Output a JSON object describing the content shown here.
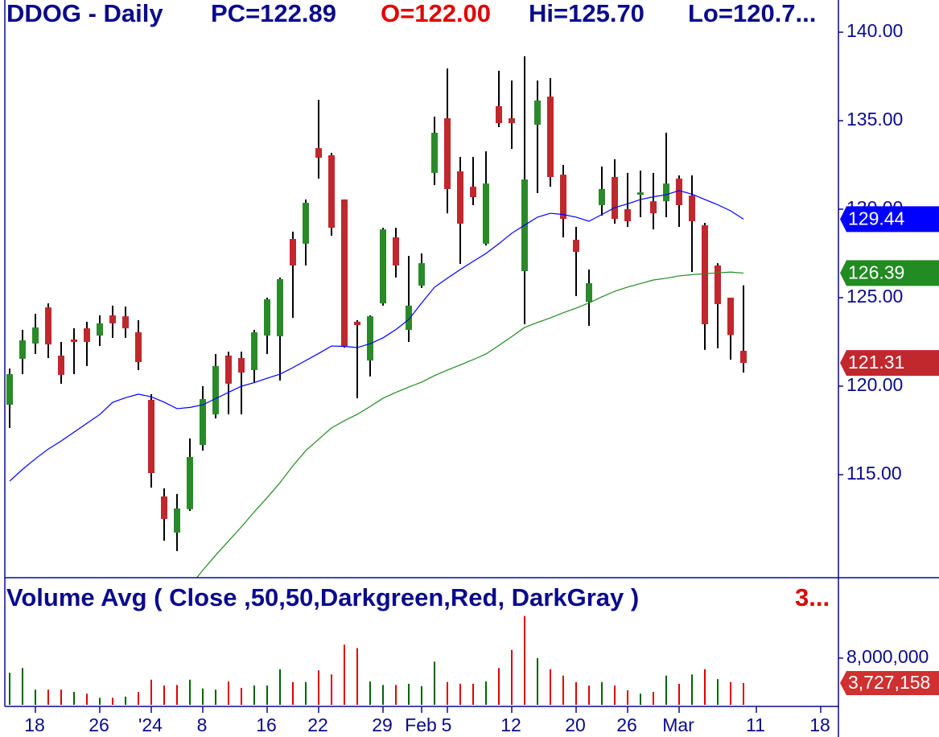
{
  "chart_data": [
    {
      "type": "candlestick",
      "title": "DDOG - Daily",
      "title_color": "#0a0a8c",
      "header": [
        {
          "text": "PC=122.89",
          "color": "#0a0a8c"
        },
        {
          "text": "O=122.00",
          "color": "#e00000"
        },
        {
          "text": "Hi=125.70",
          "color": "#0a0a8c"
        },
        {
          "text": "Lo=120.7...",
          "color": "#0a0a8c"
        }
      ],
      "categories": [
        null,
        null,
        "18",
        null,
        null,
        null,
        null,
        "26",
        null,
        null,
        null,
        "'24",
        null,
        null,
        null,
        "8",
        null,
        null,
        null,
        null,
        "16",
        null,
        null,
        null,
        "22",
        null,
        null,
        null,
        null,
        "29",
        null,
        null,
        "Feb",
        null,
        "5",
        null,
        null,
        null,
        null,
        "12",
        null,
        null,
        null,
        null,
        "20",
        null,
        null,
        null,
        "26",
        null,
        null,
        null,
        "Mar",
        null,
        null,
        null,
        null,
        null,
        "11",
        null,
        null,
        null,
        null,
        "18"
      ],
      "open": [
        118.95,
        121.55,
        122.41,
        124.45,
        121.73,
        122.64,
        123.27,
        122.86,
        124.0,
        123.95,
        123.05,
        119.23,
        113.77,
        111.73,
        113.05,
        116.68,
        118.41,
        121.73,
        121.59,
        120.91,
        122.86,
        122.82,
        128.32,
        128.05,
        133.45,
        133.05,
        130.55,
        123.64,
        121.45,
        124.68,
        128.41,
        123.18,
        125.68,
        132.05,
        135.14,
        132.14,
        131.27,
        128.05,
        135.82,
        135.14,
        126.5,
        134.77,
        136.36,
        131.95,
        128.27,
        124.77,
        130.23,
        131.82,
        130.0,
        130.82,
        130.45,
        130.45,
        131.73,
        130.77,
        129.09,
        126.82,
        125.0,
        122.0,
        null,
        null,
        null,
        null,
        null,
        null
      ],
      "high": [
        121.0,
        123.18,
        124.09,
        124.68,
        122.5,
        123.27,
        123.64,
        124.0,
        124.55,
        124.5,
        123.73,
        119.55,
        114.23,
        113.91,
        117.05,
        120.0,
        121.82,
        121.95,
        121.95,
        123.18,
        125.0,
        126.14,
        128.73,
        130.55,
        136.18,
        133.18,
        130.55,
        123.73,
        124.0,
        128.95,
        128.95,
        127.36,
        127.5,
        135.23,
        137.95,
        132.95,
        132.95,
        133.27,
        137.82,
        137.27,
        138.64,
        137.27,
        137.41,
        132.5,
        129.0,
        126.59,
        132.41,
        132.82,
        132.05,
        132.18,
        132.05,
        134.32,
        131.91,
        131.91,
        129.23,
        126.95,
        125.0,
        125.7,
        null,
        null,
        null,
        null,
        null,
        null
      ],
      "low": [
        117.64,
        120.68,
        121.82,
        121.59,
        120.14,
        120.68,
        121.14,
        122.27,
        122.73,
        122.73,
        120.91,
        114.27,
        111.27,
        110.68,
        112.95,
        116.36,
        118.18,
        118.41,
        118.41,
        120.23,
        121.82,
        120.32,
        123.86,
        126.82,
        131.73,
        128.5,
        122.18,
        119.32,
        120.55,
        124.55,
        126.14,
        122.5,
        125.55,
        131.36,
        129.77,
        126.91,
        130.23,
        127.95,
        134.64,
        133.41,
        123.5,
        130.91,
        131.27,
        128.41,
        125.09,
        123.41,
        129.64,
        129.18,
        129.0,
        129.55,
        128.86,
        129.55,
        129.0,
        126.45,
        122.05,
        122.14,
        121.5,
        120.77,
        null,
        null,
        null,
        null,
        null,
        null
      ],
      "close": [
        120.68,
        122.59,
        123.32,
        122.36,
        120.64,
        122.5,
        122.5,
        123.55,
        123.55,
        123.27,
        121.36,
        115.09,
        112.5,
        113.09,
        116.0,
        119.27,
        121.14,
        120.14,
        120.77,
        123.05,
        124.91,
        126.05,
        126.82,
        130.36,
        132.91,
        128.95,
        122.27,
        123.45,
        123.95,
        128.86,
        126.82,
        124.55,
        126.95,
        134.32,
        131.14,
        129.18,
        130.68,
        131.45,
        134.86,
        134.86,
        131.68,
        136.14,
        131.82,
        129.45,
        127.59,
        125.82,
        131.14,
        129.45,
        129.32,
        130.95,
        129.77,
        131.45,
        130.23,
        129.32,
        123.5,
        124.64,
        122.89,
        121.31,
        null,
        null,
        null,
        null,
        null,
        null
      ],
      "up_color": "#2a8a2a",
      "down_color": "#c0282d",
      "wick_color": "#000000",
      "lines": [
        {
          "color": "#0000ff",
          "values": [
            114.64,
            115.3,
            115.9,
            116.45,
            116.9,
            117.4,
            117.9,
            118.4,
            119.09,
            119.35,
            119.55,
            119.4,
            119.1,
            118.73,
            118.8,
            118.95,
            119.3,
            119.65,
            120.0,
            120.2,
            120.45,
            120.68,
            121.05,
            121.45,
            121.85,
            122.27,
            122.25,
            122.18,
            122.4,
            122.73,
            123.2,
            123.77,
            124.7,
            125.59,
            126.1,
            126.59,
            127.05,
            127.5,
            128.05,
            128.64,
            129.1,
            129.55,
            129.77,
            129.7,
            129.55,
            129.32,
            129.7,
            130.09,
            130.3,
            130.55,
            130.7,
            130.82,
            131.05,
            130.85,
            130.55,
            130.25,
            129.91,
            129.44,
            null,
            null,
            null,
            null,
            null,
            null
          ]
        },
        {
          "color": "#228b22",
          "values": [
            null,
            null,
            null,
            null,
            null,
            null,
            null,
            null,
            null,
            null,
            null,
            null,
            null,
            null,
            108.7,
            109.6,
            110.45,
            111.25,
            112.05,
            112.9,
            113.7,
            114.55,
            115.5,
            116.36,
            117.0,
            117.64,
            118.05,
            118.41,
            118.85,
            119.32,
            119.65,
            119.95,
            120.23,
            120.6,
            120.91,
            121.2,
            121.5,
            121.82,
            122.3,
            122.8,
            123.32,
            123.6,
            123.86,
            124.15,
            124.41,
            124.7,
            125.05,
            125.36,
            125.6,
            125.8,
            126.0,
            126.1,
            126.23,
            126.3,
            126.36,
            126.4,
            126.45,
            126.39,
            null,
            null,
            null,
            null,
            null,
            null
          ]
        }
      ],
      "ylim": [
        109.18,
        141.82
      ],
      "yticks": [
        {
          "value": 115,
          "label": "115.00"
        },
        {
          "value": 120,
          "label": "120.00"
        },
        {
          "value": 125,
          "label": "125.00"
        },
        {
          "value": 130,
          "label": "130.00"
        },
        {
          "value": 135,
          "label": "135.00"
        },
        {
          "value": 140,
          "label": "140.00"
        }
      ]
    },
    {
      "type": "bar",
      "title": "Volume Avg ( Close ,50,50,Darkgreen,Red, DarkGray )",
      "title_color": "#0a0a8c",
      "title_value": "3...",
      "title_value_color": "#e00000",
      "values": [
        5500000,
        6300000,
        2600000,
        2600000,
        2600000,
        2200000,
        1900000,
        1200000,
        1200000,
        1400000,
        2200000,
        4300000,
        3300000,
        3400000,
        4300000,
        2800000,
        2600000,
        4000000,
        2900000,
        3300000,
        3300000,
        6100000,
        3900000,
        3900000,
        5900000,
        5200000,
        10300000,
        9700000,
        4000000,
        3400000,
        3400000,
        3600000,
        3200000,
        7400000,
        3900000,
        3600000,
        3600000,
        4000000,
        6300000,
        9400000,
        15200000,
        8000000,
        6100000,
        5000000,
        3900000,
        3300000,
        3900000,
        3300000,
        2500000,
        1900000,
        2200000,
        5000000,
        3600000,
        5200000,
        6100000,
        4400000,
        3900000,
        3727158,
        null,
        null,
        null,
        null,
        null,
        null
      ],
      "colors": [
        "#006400",
        "#006400",
        "#006400",
        "#e00000",
        "#e00000",
        "#006400",
        "#e00000",
        "#006400",
        "#e00000",
        "#006400",
        "#e00000",
        "#e00000",
        "#e00000",
        "#e00000",
        "#006400",
        "#006400",
        "#006400",
        "#e00000",
        "#e00000",
        "#006400",
        "#006400",
        "#006400",
        "#e00000",
        "#006400",
        "#e00000",
        "#e00000",
        "#e00000",
        "#e00000",
        "#006400",
        "#006400",
        "#e00000",
        "#006400",
        "#006400",
        "#006400",
        "#e00000",
        "#e00000",
        "#e00000",
        "#006400",
        "#e00000",
        "#e00000",
        "#e00000",
        "#006400",
        "#e00000",
        "#e00000",
        "#e00000",
        "#e00000",
        "#006400",
        "#e00000",
        "#e00000",
        "#006400",
        "#e00000",
        "#006400",
        "#e00000",
        "#006400",
        "#e00000",
        "#006400",
        "#e00000",
        "#e00000",
        null,
        null,
        null,
        null,
        null,
        null
      ],
      "last_value_label": "3,727,158",
      "last_value_color": "#d03030",
      "ylim": [
        0,
        21500000
      ],
      "yticks": [
        {
          "value": 8000000,
          "label": "8,000,000"
        }
      ]
    }
  ]
}
